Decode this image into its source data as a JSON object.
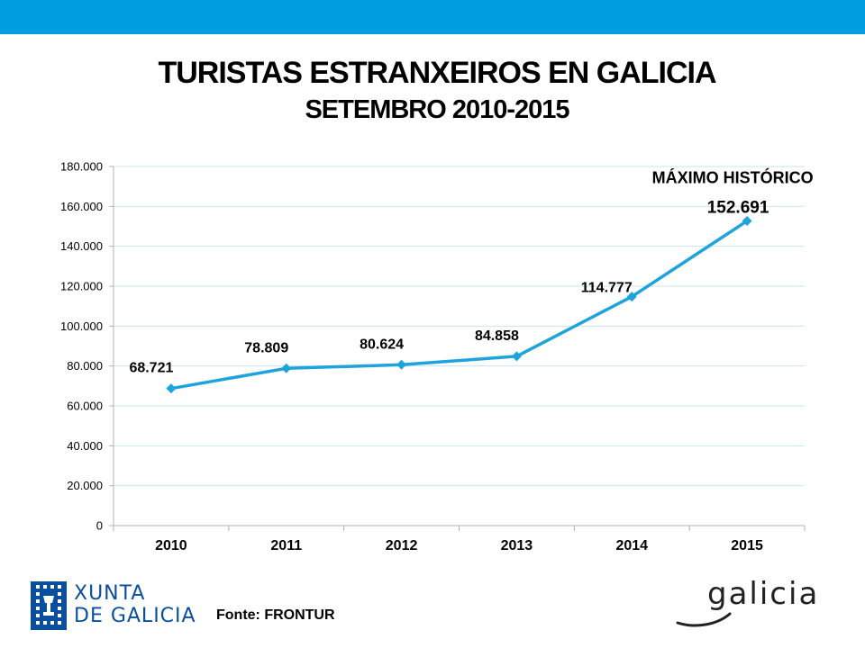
{
  "header": {
    "title": "TURISTAS ESTRANXEIROS EN GALICIA",
    "subtitle": "SETEMBRO 2010-2015"
  },
  "colors": {
    "top_bar": "#009de0",
    "series_line": "#1ea3dc",
    "grid": "#c8e4f2",
    "xunta_blue": "#0a4f9e"
  },
  "chart_data": {
    "type": "line",
    "categories": [
      "2010",
      "2011",
      "2012",
      "2013",
      "2014",
      "2015"
    ],
    "series": [
      {
        "values": [
          68721,
          78809,
          80624,
          84858,
          114777,
          152691
        ]
      }
    ],
    "data_labels": [
      "68.721",
      "78.809",
      "80.624",
      "84.858",
      "114.777",
      "152.691"
    ],
    "y_ticks": [
      0,
      20000,
      40000,
      60000,
      80000,
      100000,
      120000,
      140000,
      160000,
      180000
    ],
    "y_tick_labels": [
      "0",
      "20.000",
      "40.000",
      "60.000",
      "80.000",
      "100.000",
      "120.000",
      "140.000",
      "160.000",
      "180.000"
    ],
    "ylim": [
      0,
      180000
    ],
    "grid": true,
    "marker": "diamond",
    "annotation": "MÁXIMO HISTÓRICO",
    "xlabel": "",
    "ylabel": ""
  },
  "footer": {
    "source": "Fonte: FRONTUR",
    "xunta_line1": "XUNTA",
    "xunta_line2": "DE GALICIA",
    "galicia_brand": "galicia"
  }
}
